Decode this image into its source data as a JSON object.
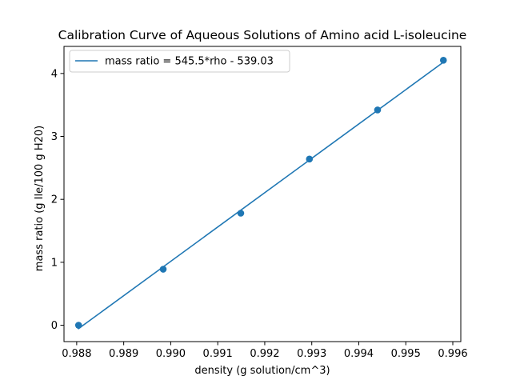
{
  "chart_data": {
    "type": "scatter",
    "title": "Calibration Curve of Aqueous Solutions of Amino acid L-isoleucine",
    "xlabel": "density (g solution/cm^3)",
    "ylabel": "mass ratio (g Ile/100 g H20)",
    "xlim": [
      0.98773,
      0.99617
    ],
    "ylim": [
      -0.26,
      4.43
    ],
    "x_ticks": [
      0.988,
      0.989,
      0.99,
      0.991,
      0.992,
      0.993,
      0.994,
      0.995,
      0.996
    ],
    "x_tick_labels": [
      "0.988",
      "0.989",
      "0.990",
      "0.991",
      "0.992",
      "0.993",
      "0.994",
      "0.995",
      "0.996"
    ],
    "y_ticks": [
      0,
      1,
      2,
      3,
      4
    ],
    "y_tick_labels": [
      "0",
      "1",
      "2",
      "3",
      "4"
    ],
    "grid": false,
    "legend_position": "top-left",
    "points": {
      "x": [
        0.98804,
        0.98984,
        0.99149,
        0.99295,
        0.9944,
        0.9958
      ],
      "y": [
        0.0,
        0.89,
        1.78,
        2.64,
        3.42,
        4.21
      ]
    },
    "fit_line": {
      "name": "mass ratio = 545.5*rho - 539.03",
      "slope": 545.5,
      "intercept": -539.03,
      "x_range": [
        0.98804,
        0.9958
      ]
    },
    "colors": {
      "series": "#1f77b4",
      "axes": "#000000",
      "legend_border": "#cccccc"
    }
  }
}
